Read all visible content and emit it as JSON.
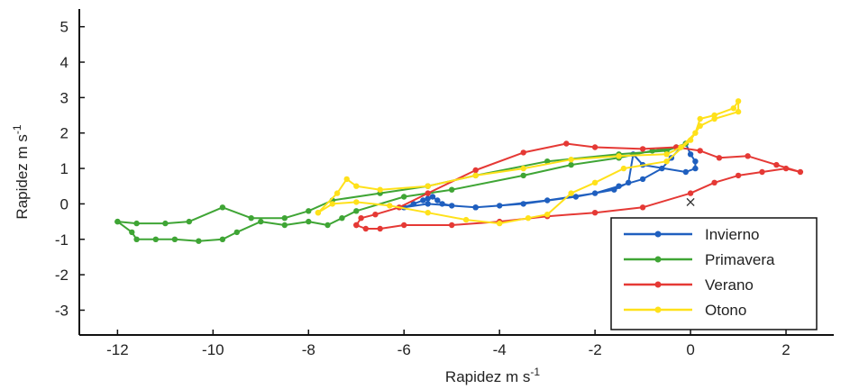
{
  "chart_data": {
    "type": "line",
    "title": "",
    "xlabel": "Rapidez  m s",
    "xlabel_sup": "-1",
    "ylabel": "Rapidez  m s",
    "ylabel_sup": "-1",
    "xlim": [
      -12.8,
      3.0
    ],
    "ylim": [
      -3.7,
      5.5
    ],
    "xticks": [
      -12,
      -10,
      -8,
      -6,
      -4,
      -2,
      0,
      2
    ],
    "yticks": [
      -3,
      -2,
      -1,
      0,
      1,
      2,
      3,
      4,
      5
    ],
    "grid": false,
    "legend": "bottom-right",
    "marker_x": {
      "label": "×",
      "x": 0.0,
      "y": 0.05
    },
    "series": [
      {
        "name": "Invierno",
        "color": "#1f5fbf",
        "points": [
          [
            -6.0,
            -0.1
          ],
          [
            -5.8,
            0.0
          ],
          [
            -5.6,
            0.1
          ],
          [
            -5.5,
            0.15
          ],
          [
            -5.4,
            0.2
          ],
          [
            -5.3,
            0.1
          ],
          [
            -5.2,
            0.0
          ],
          [
            -5.0,
            -0.05
          ],
          [
            -4.5,
            -0.1
          ],
          [
            -4.0,
            -0.05
          ],
          [
            -3.0,
            0.1
          ],
          [
            -2.0,
            0.3
          ],
          [
            -1.5,
            0.5
          ],
          [
            -1.0,
            0.7
          ],
          [
            -0.6,
            1.0
          ],
          [
            -0.4,
            1.3
          ],
          [
            -0.2,
            1.6
          ],
          [
            -0.1,
            1.7
          ],
          [
            0.0,
            1.4
          ],
          [
            0.1,
            1.2
          ],
          [
            0.1,
            1.0
          ],
          [
            -0.1,
            0.9
          ],
          [
            -1.0,
            1.1
          ],
          [
            -1.2,
            1.4
          ],
          [
            -1.3,
            0.6
          ],
          [
            -1.6,
            0.4
          ],
          [
            -2.4,
            0.2
          ],
          [
            -3.5,
            0.0
          ],
          [
            -4.5,
            -0.1
          ],
          [
            -5.5,
            0.0
          ],
          [
            -6.0,
            -0.1
          ]
        ]
      },
      {
        "name": "Primavera",
        "color": "#3fa535",
        "points": [
          [
            -12.0,
            -0.5
          ],
          [
            -11.7,
            -0.8
          ],
          [
            -11.6,
            -1.0
          ],
          [
            -11.2,
            -1.0
          ],
          [
            -10.8,
            -1.0
          ],
          [
            -10.3,
            -1.05
          ],
          [
            -9.8,
            -1.0
          ],
          [
            -9.5,
            -0.8
          ],
          [
            -9.0,
            -0.5
          ],
          [
            -8.5,
            -0.6
          ],
          [
            -8.0,
            -0.5
          ],
          [
            -7.6,
            -0.6
          ],
          [
            -7.3,
            -0.4
          ],
          [
            -7.0,
            -0.2
          ],
          [
            -6.0,
            0.2
          ],
          [
            -5.0,
            0.4
          ],
          [
            -3.5,
            0.8
          ],
          [
            -2.5,
            1.1
          ],
          [
            -1.5,
            1.3
          ],
          [
            -0.8,
            1.5
          ],
          [
            -0.3,
            1.6
          ],
          [
            -0.1,
            1.7
          ],
          [
            -0.5,
            1.5
          ],
          [
            -1.5,
            1.4
          ],
          [
            -3.0,
            1.2
          ],
          [
            -4.5,
            0.8
          ],
          [
            -5.5,
            0.5
          ],
          [
            -6.5,
            0.3
          ],
          [
            -7.5,
            0.1
          ],
          [
            -8.0,
            -0.2
          ],
          [
            -8.5,
            -0.4
          ],
          [
            -9.2,
            -0.4
          ],
          [
            -9.8,
            -0.1
          ],
          [
            -10.5,
            -0.5
          ],
          [
            -11.0,
            -0.55
          ],
          [
            -11.6,
            -0.55
          ],
          [
            -12.0,
            -0.5
          ]
        ]
      },
      {
        "name": "Verano",
        "color": "#e53935",
        "points": [
          [
            -7.0,
            -0.6
          ],
          [
            -6.8,
            -0.7
          ],
          [
            -6.5,
            -0.7
          ],
          [
            -6.0,
            -0.6
          ],
          [
            -5.0,
            -0.6
          ],
          [
            -4.0,
            -0.5
          ],
          [
            -3.0,
            -0.35
          ],
          [
            -2.0,
            -0.25
          ],
          [
            -1.0,
            -0.1
          ],
          [
            0.0,
            0.3
          ],
          [
            0.5,
            0.6
          ],
          [
            1.0,
            0.8
          ],
          [
            1.5,
            0.9
          ],
          [
            2.0,
            1.0
          ],
          [
            2.3,
            0.9
          ],
          [
            1.8,
            1.1
          ],
          [
            1.2,
            1.35
          ],
          [
            0.6,
            1.3
          ],
          [
            0.2,
            1.5
          ],
          [
            -0.3,
            1.6
          ],
          [
            -1.0,
            1.55
          ],
          [
            -2.0,
            1.6
          ],
          [
            -2.6,
            1.7
          ],
          [
            -3.5,
            1.45
          ],
          [
            -4.5,
            0.95
          ],
          [
            -5.5,
            0.3
          ],
          [
            -6.1,
            -0.1
          ],
          [
            -6.6,
            -0.3
          ],
          [
            -6.9,
            -0.4
          ],
          [
            -7.0,
            -0.6
          ]
        ]
      },
      {
        "name": "Otono",
        "color": "#ffe11a",
        "points": [
          [
            -7.8,
            -0.25
          ],
          [
            -7.4,
            0.3
          ],
          [
            -7.2,
            0.7
          ],
          [
            -7.0,
            0.5
          ],
          [
            -6.5,
            0.4
          ],
          [
            -5.5,
            0.5
          ],
          [
            -4.5,
            0.8
          ],
          [
            -3.5,
            1.0
          ],
          [
            -2.5,
            1.25
          ],
          [
            -1.5,
            1.35
          ],
          [
            -0.5,
            1.4
          ],
          [
            -0.2,
            1.6
          ],
          [
            0.1,
            2.0
          ],
          [
            0.2,
            2.4
          ],
          [
            0.5,
            2.5
          ],
          [
            0.9,
            2.7
          ],
          [
            1.0,
            2.9
          ],
          [
            1.0,
            2.6
          ],
          [
            0.5,
            2.4
          ],
          [
            0.2,
            2.2
          ],
          [
            0.0,
            1.8
          ],
          [
            -0.5,
            1.2
          ],
          [
            -1.4,
            1.0
          ],
          [
            -2.0,
            0.6
          ],
          [
            -2.5,
            0.3
          ],
          [
            -3.0,
            -0.3
          ],
          [
            -3.4,
            -0.4
          ],
          [
            -4.0,
            -0.55
          ],
          [
            -4.7,
            -0.45
          ],
          [
            -5.5,
            -0.25
          ],
          [
            -6.3,
            -0.05
          ],
          [
            -7.0,
            0.05
          ],
          [
            -7.5,
            0.0
          ],
          [
            -7.8,
            -0.25
          ]
        ]
      }
    ]
  }
}
